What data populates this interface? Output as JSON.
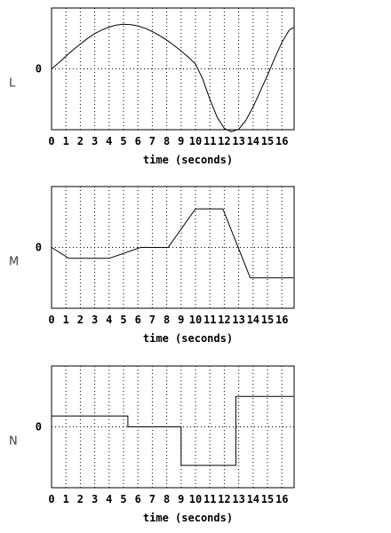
{
  "chart_data": [
    {
      "type": "line",
      "panel_label": "L",
      "zero_label": "0",
      "xlabel": "time (seconds)",
      "xlim": [
        0,
        16.8
      ],
      "ylim": [
        -1.5,
        1.5
      ],
      "x_ticks": [
        "0",
        "1",
        "2",
        "3",
        "4",
        "5",
        "6",
        "7",
        "8",
        "9",
        "10",
        "11",
        "12",
        "13",
        "14",
        "15",
        "16"
      ],
      "grid": true,
      "series": [
        {
          "x": [
            0,
            0.5,
            1,
            1.5,
            2,
            2.5,
            3,
            3.5,
            4,
            4.5,
            5,
            5.5,
            6,
            6.5,
            7,
            7.5,
            8,
            8.5,
            9,
            9.5,
            10,
            10.5,
            11,
            11.5,
            12,
            12.5,
            13,
            13.5,
            14,
            14.5,
            15,
            15.5,
            16,
            16.5,
            16.8
          ],
          "y": [
            0,
            0.15,
            0.31,
            0.47,
            0.61,
            0.75,
            0.87,
            0.96,
            1.03,
            1.08,
            1.1,
            1.09,
            1.06,
            1.0,
            0.92,
            0.82,
            0.71,
            0.58,
            0.44,
            0.29,
            0.12,
            -0.25,
            -0.75,
            -1.19,
            -1.47,
            -1.55,
            -1.49,
            -1.27,
            -0.94,
            -0.55,
            -0.16,
            0.26,
            0.65,
            0.95,
            1.02
          ]
        }
      ]
    },
    {
      "type": "line",
      "panel_label": "M",
      "zero_label": "0",
      "xlabel": "time (seconds)",
      "xlim": [
        0,
        16.8
      ],
      "ylim": [
        -1.5,
        1.5
      ],
      "x_ticks": [
        "0",
        "1",
        "2",
        "3",
        "4",
        "5",
        "6",
        "7",
        "8",
        "9",
        "10",
        "11",
        "12",
        "13",
        "14",
        "15",
        "16"
      ],
      "grid": true,
      "series": [
        {
          "x": [
            0,
            1.2,
            4,
            6.2,
            8.1,
            10,
            11.9,
            13.8,
            16.8
          ],
          "y": [
            0,
            -0.27,
            -0.27,
            0,
            0,
            0.95,
            0.95,
            -0.75,
            -0.75
          ]
        }
      ]
    },
    {
      "type": "line",
      "panel_label": "N",
      "zero_label": "0",
      "xlabel": "time (seconds)",
      "xlim": [
        0,
        16.8
      ],
      "ylim": [
        -1.5,
        1.5
      ],
      "x_ticks": [
        "0",
        "1",
        "2",
        "3",
        "4",
        "5",
        "6",
        "7",
        "8",
        "9",
        "10",
        "11",
        "12",
        "13",
        "14",
        "15",
        "16"
      ],
      "grid": true,
      "series": [
        {
          "x": [
            0,
            5.3,
            5.3,
            9.0,
            9.0,
            12.8,
            12.8,
            16.8
          ],
          "y": [
            0.27,
            0.27,
            0,
            0,
            -0.95,
            -0.95,
            0.75,
            0.75
          ]
        }
      ]
    }
  ]
}
